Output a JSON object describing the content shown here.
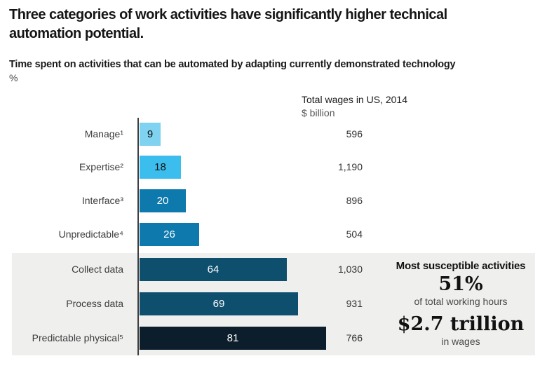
{
  "header": {
    "title": "Three categories of work activities have significantly higher technical automation potential.",
    "subtitle": "Time spent on activities that can be automated by adapting currently demonstrated technology",
    "unit": "%"
  },
  "wages_column": {
    "title": "Total wages in US, 2014",
    "subtitle": "$ billion"
  },
  "chart_data": {
    "type": "bar",
    "orientation": "horizontal",
    "title": "Time spent on activities that can be automated by adapting currently demonstrated technology (%)",
    "categories": [
      "Manage¹",
      "Expertise²",
      "Interface³",
      "Unpredictable⁴",
      "Collect data",
      "Process data",
      "Predictable physical⁵"
    ],
    "values": [
      9,
      18,
      20,
      26,
      64,
      69,
      81
    ],
    "wages_billion": [
      "596",
      "1,190",
      "896",
      "504",
      "1,030",
      "931",
      "766"
    ],
    "xlim": [
      0,
      100
    ],
    "grid": false,
    "legend": false,
    "bar_colors": [
      "#7fd2f0",
      "#3bbdee",
      "#0e79ad",
      "#0e79ad",
      "#0f4f6e",
      "#0f4f6e",
      "#0c1d2b"
    ],
    "value_label_colors": [
      "#111111",
      "#111111",
      "#ffffff",
      "#ffffff",
      "#ffffff",
      "#ffffff",
      "#ffffff"
    ],
    "highlight_rows": [
      4,
      5,
      6
    ],
    "highlight_bg": "#efefee"
  },
  "highlight_panel": {
    "heading": "Most susceptible activities",
    "stat1_value": "51%",
    "stat1_label": "of total working hours",
    "stat2_value": "$2.7 trillion",
    "stat2_label": "in wages"
  }
}
